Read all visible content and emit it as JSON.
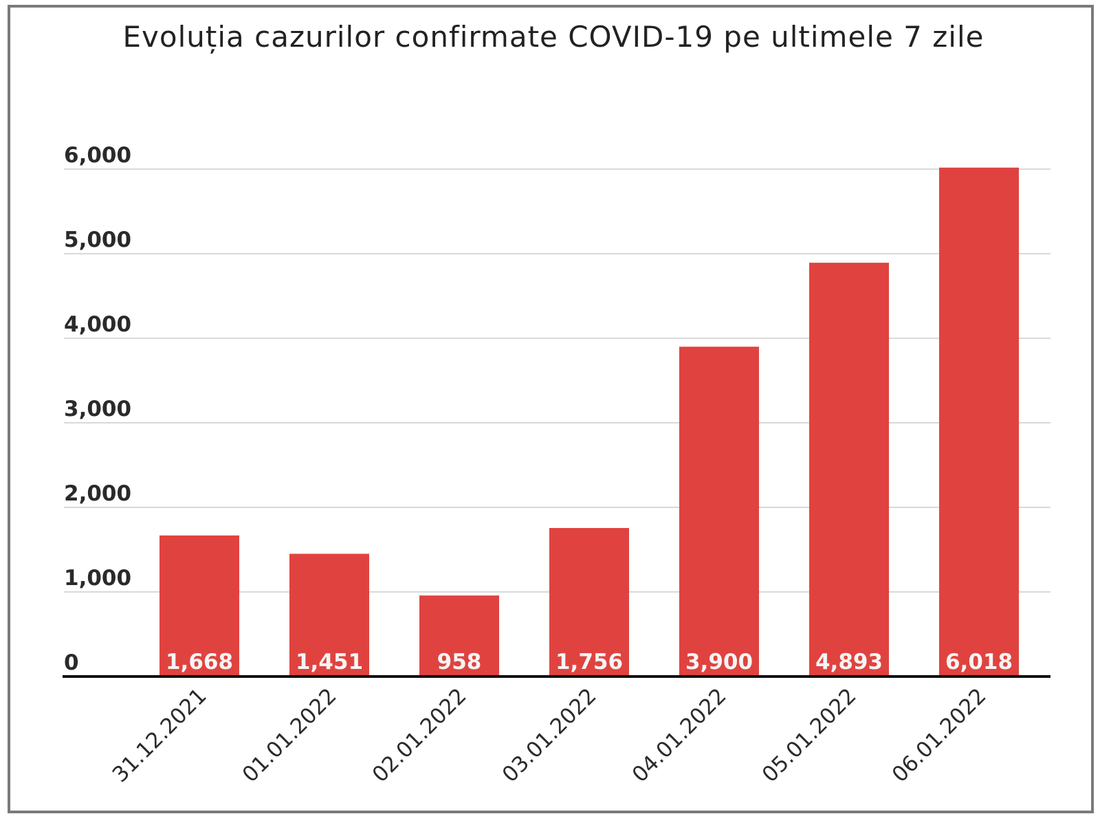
{
  "chart_data": {
    "type": "bar",
    "title": "Evoluția cazurilor confirmate COVID-19 pe ultimele 7 zile",
    "categories": [
      "31.12.2021",
      "01.01.2022",
      "02.01.2022",
      "03.01.2022",
      "04.01.2022",
      "05.01.2022",
      "06.01.2022"
    ],
    "values": [
      1668,
      1451,
      958,
      1756,
      3900,
      4893,
      6018
    ],
    "value_labels": [
      "1,668",
      "1,451",
      "958",
      "1,756",
      "3,900",
      "4,893",
      "6,018"
    ],
    "yticks": [
      0,
      1000,
      2000,
      3000,
      4000,
      5000,
      6000
    ],
    "ytick_labels": [
      "0",
      "1,000",
      "2,000",
      "3,000",
      "4,000",
      "5,000",
      "6,000"
    ],
    "ylim": [
      0,
      6000
    ],
    "xlabel": "",
    "ylabel": "",
    "grid": true,
    "legend": "none",
    "colors": {
      "bar": "#e0433f",
      "grid": "#d9d9d9",
      "axis": "#111111",
      "border": "#7a7a7a"
    }
  }
}
